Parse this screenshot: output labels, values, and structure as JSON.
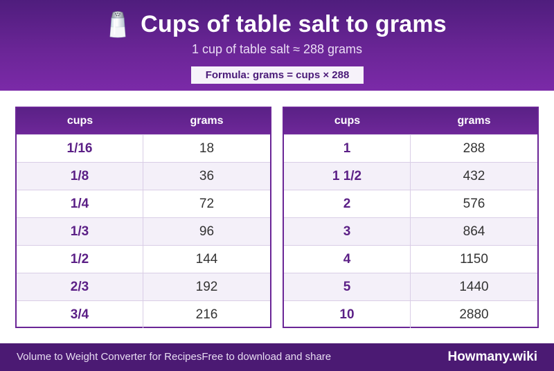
{
  "header": {
    "title": "Cups of table salt to grams",
    "subtitle": "1 cup of table salt ≈ 288 grams",
    "formula": "Formula: grams = cups × 288",
    "icon": "salt-shaker-icon"
  },
  "tables": [
    {
      "headers": {
        "cups": "cups",
        "grams": "grams"
      },
      "rows": [
        {
          "cups": "1/16",
          "grams": "18"
        },
        {
          "cups": "1/8",
          "grams": "36"
        },
        {
          "cups": "1/4",
          "grams": "72"
        },
        {
          "cups": "1/3",
          "grams": "96"
        },
        {
          "cups": "1/2",
          "grams": "144"
        },
        {
          "cups": "2/3",
          "grams": "192"
        },
        {
          "cups": "3/4",
          "grams": "216"
        }
      ]
    },
    {
      "headers": {
        "cups": "cups",
        "grams": "grams"
      },
      "rows": [
        {
          "cups": "1",
          "grams": "288"
        },
        {
          "cups": "1 1/2",
          "grams": "432"
        },
        {
          "cups": "2",
          "grams": "576"
        },
        {
          "cups": "3",
          "grams": "864"
        },
        {
          "cups": "4",
          "grams": "1150"
        },
        {
          "cups": "5",
          "grams": "1440"
        },
        {
          "cups": "10",
          "grams": "2880"
        }
      ]
    }
  ],
  "footer": {
    "left_text": "Volume to Weight Converter for Recipes",
    "middle_text": "Free to download and share",
    "brand": "Howmany.wiki"
  },
  "colors": {
    "header_purple": "#6a2596",
    "footer_purple": "#4b1a73",
    "cups_text": "#5b1f86",
    "alt_row": "#f4f0f9"
  }
}
